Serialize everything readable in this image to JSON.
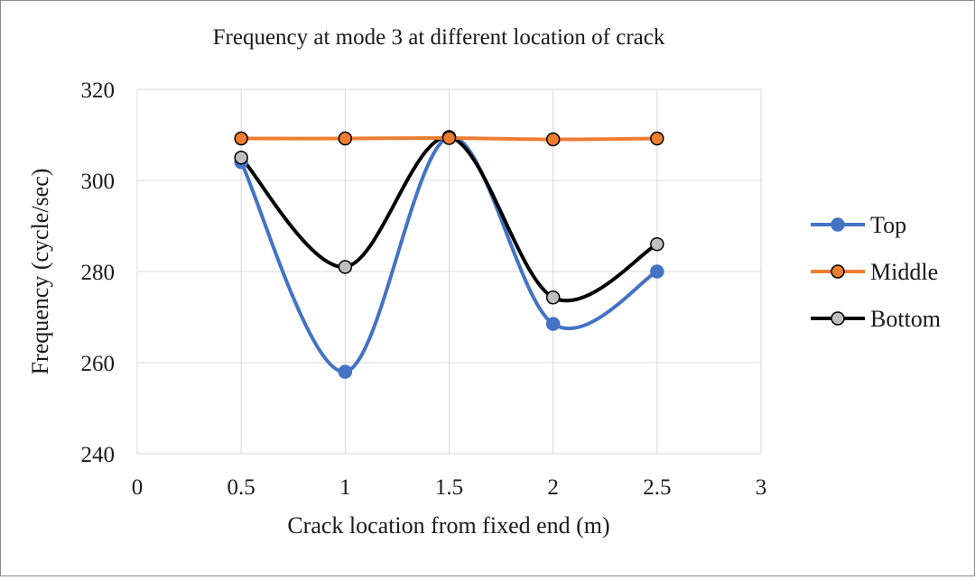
{
  "chart_data": {
    "type": "line",
    "title": "Frequency at mode 3 at different location of  crack",
    "xlabel": "Crack location from fixed end (m)",
    "ylabel": "Frequency (cycle/sec)",
    "xlim": [
      0,
      3
    ],
    "ylim": [
      240,
      320
    ],
    "x_ticks": [
      0,
      0.5,
      1,
      1.5,
      2,
      2.5,
      3
    ],
    "y_ticks": [
      240,
      260,
      280,
      300,
      320
    ],
    "x_tick_labels": [
      "0",
      "0.5",
      "1",
      "1.5",
      "2",
      "2.5",
      "3"
    ],
    "y_tick_labels": [
      "240",
      "260",
      "280",
      "300",
      "320"
    ],
    "grid": "vertical and horizontal",
    "smoothed": true,
    "legend_position": "right",
    "x": [
      0.5,
      1,
      1.5,
      2,
      2.5
    ],
    "series": [
      {
        "name": "Top",
        "values": [
          304,
          258,
          309.5,
          268.5,
          280
        ],
        "color": "#4472c4",
        "marker_color": "#4472c4"
      },
      {
        "name": "Middle",
        "values": [
          309.2,
          309.2,
          309.3,
          309,
          309.2
        ],
        "color": "#ed7d31",
        "marker_color": "#ed7d31"
      },
      {
        "name": "Bottom",
        "values": [
          305,
          281,
          309.5,
          274.3,
          286
        ],
        "color": "#000000",
        "marker_color": "#bfbfbf"
      }
    ]
  }
}
